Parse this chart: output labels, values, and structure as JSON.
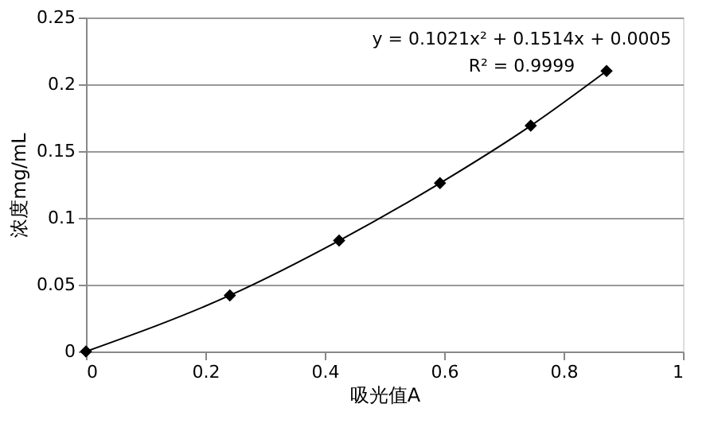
{
  "chart_data": {
    "type": "scatter",
    "xlabel": "吸光值A",
    "ylabel": "浓度mg/mL",
    "x": [
      0,
      0.241,
      0.424,
      0.593,
      0.745,
      0.872
    ],
    "series": [
      {
        "color": "#000000",
        "marker": "diamond",
        "values": [
          0,
          0.042,
          0.083,
          0.126,
          0.169,
          0.21
        ]
      },
      {
        "type": "line",
        "color": "#000000",
        "line_style": "solid",
        "x": [
          0,
          0.241,
          0.424,
          0.593,
          0.745,
          0.872
        ],
        "values": [
          0,
          0.042,
          0.083,
          0.126,
          0.169,
          0.21
        ]
      }
    ],
    "annotations": [
      "y = 0.1021x² + 0.1514x + 0.0005",
      "R² = 0.9999"
    ],
    "xlim": [
      0,
      1
    ],
    "xticks": [
      0,
      0.2,
      0.4,
      0.6,
      0.8,
      1
    ],
    "ylim": [
      0,
      0.25
    ],
    "yticks": [
      0,
      0.05,
      0.1,
      0.15,
      0.2,
      0.25
    ],
    "grid": "y"
  }
}
